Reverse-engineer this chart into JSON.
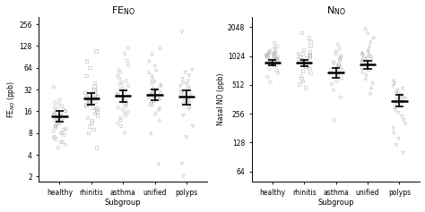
{
  "categories": [
    "healthy",
    "rhinitis",
    "asthma",
    "unified",
    "polyps"
  ],
  "xlabel": "Subgroup",
  "left_ylabel": "FE$_{NO}$ (ppb)",
  "right_ylabel": "Nasal NO (ppb)",
  "left_yticks": [
    2,
    4,
    8,
    16,
    32,
    64,
    128,
    256
  ],
  "right_yticks": [
    64,
    128,
    256,
    512,
    1024,
    2048
  ],
  "left_ylim": [
    1.7,
    320
  ],
  "right_ylim": [
    50,
    2600
  ],
  "left_means": [
    13.5,
    24.0,
    26.0,
    27.0,
    25.5
  ],
  "left_ci_low": [
    11.5,
    20.0,
    21.5,
    22.5,
    20.0
  ],
  "left_ci_high": [
    16.0,
    29.0,
    31.5,
    32.5,
    31.5
  ],
  "right_means": [
    880,
    870,
    690,
    830,
    350
  ],
  "right_ci_low": [
    820,
    810,
    610,
    760,
    305
  ],
  "right_ci_high": [
    940,
    935,
    770,
    905,
    400
  ],
  "marker_color": "#b0b0b0",
  "mean_color": "#000000",
  "left_data": {
    "healthy": [
      5,
      5.5,
      6,
      6,
      6.5,
      7,
      7,
      7.5,
      8,
      8,
      8.5,
      9,
      9,
      9.5,
      10,
      10,
      10.5,
      11,
      11,
      11.5,
      12,
      12,
      12.5,
      13,
      13,
      13,
      13.5,
      14,
      14,
      14.5,
      15,
      15,
      15.5,
      16,
      16,
      17,
      17,
      18,
      19,
      20,
      21,
      23,
      35
    ],
    "rhinitis": [
      5,
      8,
      9,
      10,
      11,
      12,
      13,
      14,
      15,
      16,
      17,
      18,
      18,
      19,
      20,
      20,
      21,
      21,
      22,
      22,
      23,
      23,
      24,
      24,
      25,
      25,
      26,
      27,
      28,
      29,
      30,
      32,
      35,
      40,
      50,
      65,
      80,
      110
    ],
    "asthma": [
      8,
      10,
      11,
      12,
      13,
      14,
      15,
      16,
      17,
      18,
      19,
      20,
      21,
      22,
      23,
      24,
      25,
      26,
      27,
      28,
      30,
      32,
      34,
      36,
      38,
      40,
      42,
      45,
      50,
      55,
      60,
      70,
      80,
      100,
      120
    ],
    "unified": [
      3,
      8,
      12,
      15,
      17,
      18,
      20,
      20,
      22,
      22,
      24,
      24,
      25,
      26,
      26,
      27,
      28,
      29,
      30,
      30,
      32,
      33,
      34,
      36,
      38,
      40,
      42,
      45,
      50,
      55,
      60,
      70,
      80,
      100,
      120
    ],
    "polyps": [
      2,
      3,
      7,
      10,
      14,
      17,
      18,
      20,
      21,
      22,
      23,
      24,
      25,
      26,
      27,
      28,
      30,
      30,
      32,
      34,
      36,
      38,
      40,
      42,
      45,
      50,
      55,
      60,
      200
    ]
  },
  "right_data": {
    "healthy": [
      550,
      620,
      680,
      720,
      760,
      790,
      820,
      840,
      860,
      870,
      880,
      890,
      900,
      910,
      920,
      930,
      940,
      950,
      960,
      970,
      980,
      990,
      1000,
      1010,
      1020,
      1030,
      1040,
      1050,
      1060,
      1070,
      1080,
      1090,
      1100,
      1110,
      1120,
      1140,
      1160,
      1200,
      1250,
      1300,
      1400
    ],
    "rhinitis": [
      480,
      520,
      560,
      600,
      640,
      680,
      720,
      760,
      790,
      820,
      840,
      860,
      880,
      900,
      920,
      940,
      960,
      980,
      1000,
      1020,
      1040,
      1060,
      1080,
      1100,
      1150,
      1200,
      1300,
      1450,
      1600,
      1800
    ],
    "asthma": [
      220,
      380,
      450,
      520,
      560,
      600,
      640,
      660,
      680,
      700,
      720,
      740,
      760,
      780,
      800,
      820,
      840,
      860,
      890,
      920,
      950,
      990,
      1030,
      1080,
      1150,
      1220,
      1350
    ],
    "unified": [
      420,
      480,
      540,
      600,
      660,
      700,
      740,
      770,
      800,
      830,
      860,
      890,
      910,
      930,
      950,
      970,
      990,
      1010,
      1030,
      1050,
      1070,
      1090,
      1110,
      1150,
      1200,
      1300,
      1450,
      1600,
      1800,
      2000
    ],
    "polyps": [
      100,
      120,
      140,
      160,
      180,
      200,
      220,
      240,
      260,
      280,
      300,
      315,
      330,
      340,
      350,
      360,
      370,
      380,
      390,
      400,
      415,
      430,
      450,
      470,
      500,
      530,
      560
    ]
  },
  "markers": [
    "o",
    "s",
    "o",
    "^",
    "v"
  ],
  "bg_color": "#ffffff",
  "scatter_alpha": 0.7,
  "scatter_size": 6
}
